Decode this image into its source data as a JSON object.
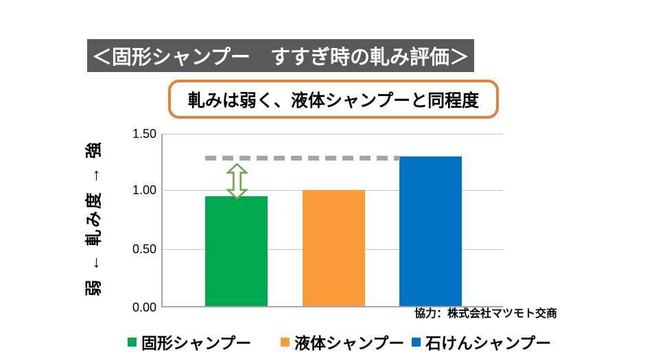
{
  "title_banner": {
    "text": "＜固形シャンプー　すすぎ時の軋み評価＞",
    "bg": "#595959",
    "fg": "#FFFFFF"
  },
  "callout": {
    "text": "軋みは弱く、液体シャンプーと同程度",
    "border_color": "#E5813A"
  },
  "credit": "協力：株式会社マツモト交商",
  "chart_data": {
    "type": "bar",
    "categories": [
      "固形シャンプー",
      "液体シャンプー",
      "石けんシャンプー"
    ],
    "values": [
      0.95,
      1.0,
      1.29
    ],
    "bar_colors": [
      "#00A950",
      "#FB9A36",
      "#0072C2"
    ],
    "ylabel": "弱 ← 軋み度 → 強",
    "ylim": [
      0,
      1.5
    ],
    "ytick_labels": [
      "1.50",
      "1.00",
      "0.50",
      "0.00"
    ],
    "grid": true,
    "legend_position": "bottom",
    "reference_line": {
      "value": 1.29,
      "color": "#A6A6A6",
      "style": "dashed"
    },
    "annotation": {
      "type": "double-arrow",
      "category_index": 0,
      "from_value": 1.29,
      "to_value": 0.95,
      "color": "#6FA84F"
    }
  },
  "legend": {
    "items": [
      {
        "label": "固形シャンプー",
        "color": "#00A950"
      },
      {
        "label": "液体シャンプー",
        "color": "#FB9A36"
      },
      {
        "label": "石けんシャンプー",
        "color": "#0072C2"
      }
    ]
  }
}
